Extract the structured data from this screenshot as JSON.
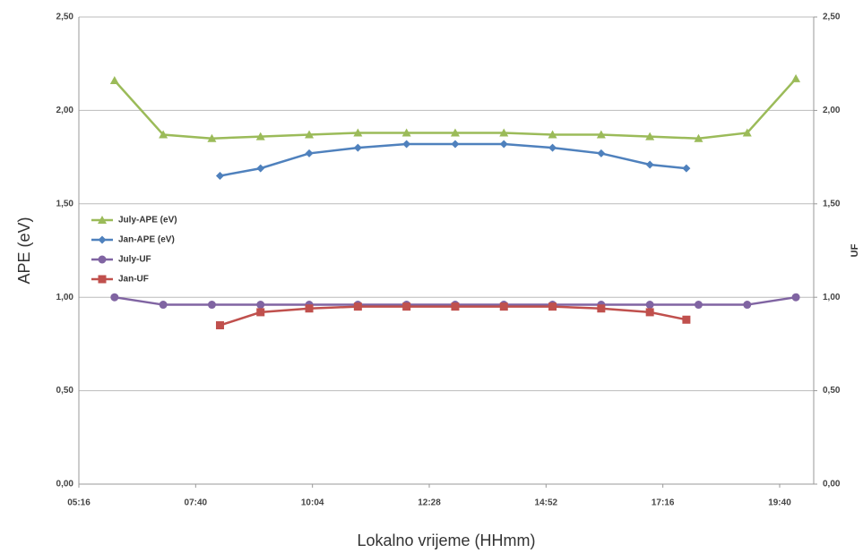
{
  "chart_data": {
    "type": "line",
    "x_label": "Lokalno vrijeme (HHmm)",
    "y_label": "APE (eV)",
    "y2_label": "UF",
    "xlim": [
      316,
      1222
    ],
    "xticks": [
      {
        "value": 316,
        "label": "05:16"
      },
      {
        "value": 460,
        "label": "07:40"
      },
      {
        "value": 604,
        "label": "10:04"
      },
      {
        "value": 748,
        "label": "12:28"
      },
      {
        "value": 892,
        "label": "14:52"
      },
      {
        "value": 1036,
        "label": "17:16"
      },
      {
        "value": 1180,
        "label": "19:40"
      }
    ],
    "ylim": [
      0,
      2.5
    ],
    "yticks": [
      {
        "value": 0,
        "label": "0,00"
      },
      {
        "value": 0.5,
        "label": "0,50"
      },
      {
        "value": 1,
        "label": "1,00"
      },
      {
        "value": 1.5,
        "label": "1,50"
      },
      {
        "value": 2,
        "label": "2,00"
      },
      {
        "value": 2.5,
        "label": "2,50"
      }
    ],
    "y2lim": [
      0,
      2.5
    ],
    "y2ticks": [
      {
        "value": 0,
        "label": "0,00"
      },
      {
        "value": 0.5,
        "label": "0,50"
      },
      {
        "value": 1,
        "label": "1,00"
      },
      {
        "value": 1.5,
        "label": "1,50"
      },
      {
        "value": 2,
        "label": "2,00"
      },
      {
        "value": 2.5,
        "label": "2,50"
      }
    ],
    "grid": true,
    "legend": "upper-left",
    "series": [
      {
        "name": "July-APE (eV)",
        "color": "#9bbb59",
        "marker": "triangle",
        "x": [
          360,
          420,
          480,
          540,
          600,
          660,
          720,
          780,
          840,
          900,
          960,
          1020,
          1080,
          1140,
          1200
        ],
        "values": [
          2.16,
          1.87,
          1.85,
          1.86,
          1.87,
          1.88,
          1.88,
          1.88,
          1.88,
          1.87,
          1.87,
          1.86,
          1.85,
          1.88,
          2.17
        ]
      },
      {
        "name": "Jan-APE (eV)",
        "color": "#4f81bd",
        "marker": "diamond",
        "x": [
          490,
          540,
          600,
          660,
          720,
          780,
          840,
          900,
          960,
          1020,
          1065
        ],
        "values": [
          1.65,
          1.69,
          1.77,
          1.8,
          1.82,
          1.82,
          1.82,
          1.8,
          1.77,
          1.71,
          1.69
        ]
      },
      {
        "name": "July-UF",
        "color": "#8064a2",
        "marker": "circle",
        "axis": "y2",
        "x": [
          360,
          420,
          480,
          540,
          600,
          660,
          720,
          780,
          840,
          900,
          960,
          1020,
          1080,
          1140,
          1200
        ],
        "values": [
          1.0,
          0.96,
          0.96,
          0.96,
          0.96,
          0.96,
          0.96,
          0.96,
          0.96,
          0.96,
          0.96,
          0.96,
          0.96,
          0.96,
          1.0
        ]
      },
      {
        "name": "Jan-UF",
        "color": "#c0504d",
        "marker": "square",
        "axis": "y2",
        "x": [
          490,
          540,
          600,
          660,
          720,
          780,
          840,
          900,
          960,
          1020,
          1065
        ],
        "values": [
          0.85,
          0.92,
          0.94,
          0.95,
          0.95,
          0.95,
          0.95,
          0.95,
          0.94,
          0.92,
          0.88
        ]
      }
    ]
  }
}
